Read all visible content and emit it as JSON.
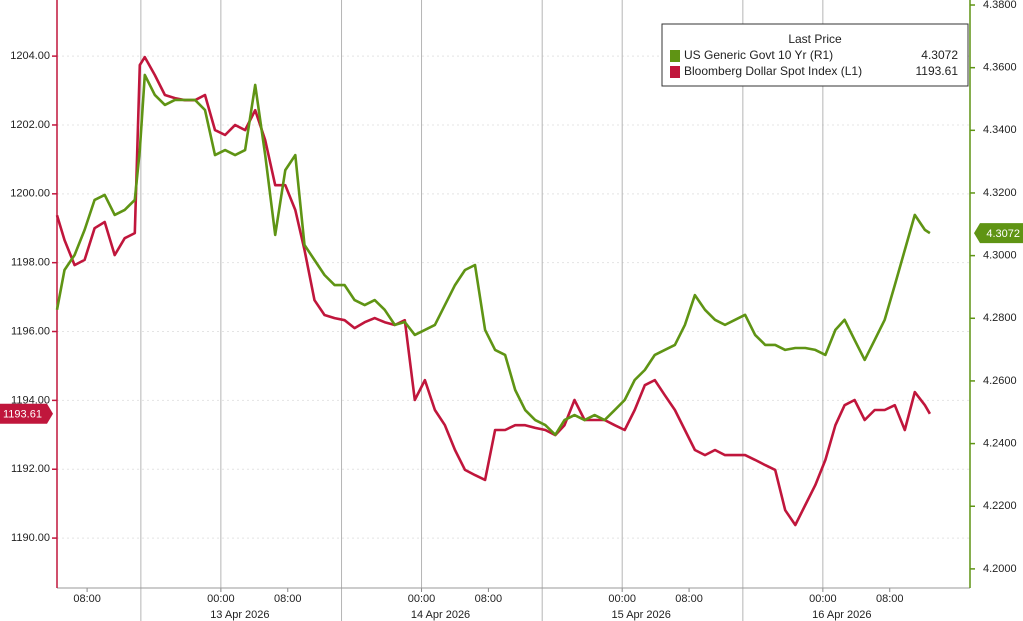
{
  "chart_data": {
    "type": "line",
    "x": [
      -19.6,
      -18.7,
      -17.5,
      -16.3,
      -15.1,
      -13.9,
      -12.7,
      -11.5,
      -10.3,
      -9.7,
      -9.1,
      -7.9,
      -6.7,
      -5.5,
      -4.3,
      -3.1,
      -1.9,
      -0.7,
      0.5,
      1.7,
      2.9,
      4.1,
      5.3,
      6.5,
      7.7,
      8.9,
      10.0,
      11.2,
      12.4,
      13.6,
      14.8,
      16.0,
      17.2,
      18.4,
      19.6,
      20.8,
      22.0,
      23.2,
      24.4,
      25.6,
      26.8,
      28.0,
      29.2,
      30.4,
      31.6,
      32.8,
      34.0,
      35.2,
      36.4,
      37.6,
      38.8,
      40.0,
      41.1,
      42.3,
      43.5,
      44.7,
      45.9,
      47.1,
      48.3,
      49.5,
      50.7,
      51.9,
      53.1,
      54.3,
      55.5,
      56.7,
      57.9,
      59.1,
      60.3,
      61.5,
      62.7,
      63.9,
      65.1,
      66.3,
      67.5,
      68.7,
      69.9,
      71.1,
      72.3,
      73.5,
      74.6,
      75.8,
      77.0,
      78.2,
      79.4,
      80.6,
      81.8,
      83.0,
      84.2,
      84.8
    ],
    "xlim": [
      -19.6,
      89.6
    ],
    "xticks": [
      {
        "value": -16,
        "label": "08:00"
      },
      {
        "value": 0,
        "label": "00:00"
      },
      {
        "value": 8,
        "label": "08:00"
      },
      {
        "value": 24,
        "label": "00:00"
      },
      {
        "value": 32,
        "label": "08:00"
      },
      {
        "value": 48,
        "label": "00:00"
      },
      {
        "value": 56,
        "label": "08:00"
      },
      {
        "value": 72,
        "label": "00:00"
      },
      {
        "value": 80,
        "label": "08:00"
      }
    ],
    "date_ticks": [
      {
        "value": 0,
        "label": "13 Apr 2026"
      },
      {
        "value": 24,
        "label": "14 Apr 2026"
      },
      {
        "value": 48,
        "label": "15 Apr 2026"
      },
      {
        "value": 72,
        "label": "16 Apr 2026"
      }
    ],
    "ylim": [
      1188.55,
      1205.63
    ],
    "yticks": [
      {
        "value": 1190,
        "label": "1190.00"
      },
      {
        "value": 1192,
        "label": "1192.00"
      },
      {
        "value": 1194,
        "label": "1194.00"
      },
      {
        "value": 1196,
        "label": "1196.00"
      },
      {
        "value": 1198,
        "label": "1198.00"
      },
      {
        "value": 1200,
        "label": "1200.00"
      },
      {
        "value": 1202,
        "label": "1202.00"
      },
      {
        "value": 1204,
        "label": "1204.00"
      }
    ],
    "y2lim": [
      4.1939,
      4.3816
    ],
    "y2ticks": [
      {
        "value": 4.2,
        "label": "4.2000"
      },
      {
        "value": 4.22,
        "label": "4.2200"
      },
      {
        "value": 4.24,
        "label": "4.2400"
      },
      {
        "value": 4.26,
        "label": "4.2600"
      },
      {
        "value": 4.28,
        "label": "4.2800"
      },
      {
        "value": 4.3,
        "label": "4.3000"
      },
      {
        "value": 4.32,
        "label": "4.3200"
      },
      {
        "value": 4.34,
        "label": "4.3400"
      },
      {
        "value": 4.36,
        "label": "4.3600"
      },
      {
        "value": 4.38,
        "label": "4.3800"
      }
    ],
    "grid": true,
    "legend": {
      "title": "Last Price",
      "position": "upper right"
    },
    "series": [
      {
        "name": "US Generic Govt 10 Yr (R1)",
        "color": "#5f9414",
        "axis": "y2",
        "last": 4.3072,
        "values": [
          4.2827,
          4.2954,
          4.3002,
          4.3082,
          4.3178,
          4.3194,
          4.313,
          4.3146,
          4.3178,
          4.3337,
          4.3577,
          4.3513,
          4.3481,
          4.3497,
          4.3497,
          4.3497,
          4.3465,
          4.3321,
          4.3337,
          4.3321,
          4.3337,
          4.3545,
          4.3321,
          4.3066,
          4.3273,
          4.3321,
          4.3034,
          4.2986,
          4.2938,
          4.2906,
          4.2906,
          4.2858,
          4.2842,
          4.2858,
          4.2827,
          4.2779,
          4.2788,
          4.2747,
          4.2763,
          4.2779,
          4.2842,
          4.2906,
          4.2954,
          4.297,
          4.2763,
          4.2699,
          4.2683,
          4.2571,
          4.2507,
          4.2475,
          4.2459,
          4.2428,
          4.2475,
          4.2491,
          4.2475,
          4.2491,
          4.2475,
          4.2507,
          4.2539,
          4.2603,
          4.2635,
          4.2683,
          4.2699,
          4.2715,
          4.2779,
          4.2874,
          4.2827,
          4.2795,
          4.2779,
          4.2795,
          4.2811,
          4.2747,
          4.2715,
          4.2715,
          4.2699,
          4.2705,
          4.2705,
          4.2699,
          4.2683,
          4.2763,
          4.2795,
          4.2731,
          4.2667,
          4.2731,
          4.2795,
          4.2906,
          4.3018,
          4.313,
          4.3082,
          4.3072
        ]
      },
      {
        "name": "Bloomberg Dollar Spot Index (L1)",
        "color": "#c0163c",
        "last": 1193.61,
        "values": [
          1199.38,
          1198.66,
          1197.93,
          1198.08,
          1199.0,
          1199.18,
          1198.22,
          1198.71,
          1198.86,
          1203.74,
          1203.97,
          1203.45,
          1202.87,
          1202.78,
          1202.72,
          1202.72,
          1202.87,
          1201.85,
          1201.71,
          1202.0,
          1201.85,
          1202.43,
          1201.56,
          1200.25,
          1200.25,
          1199.53,
          1198.37,
          1196.91,
          1196.48,
          1196.39,
          1196.33,
          1196.1,
          1196.27,
          1196.39,
          1196.27,
          1196.19,
          1196.33,
          1194.01,
          1194.59,
          1193.72,
          1193.28,
          1192.56,
          1191.98,
          1191.83,
          1191.69,
          1193.14,
          1193.14,
          1193.28,
          1193.28,
          1193.2,
          1193.14,
          1192.99,
          1193.28,
          1194.01,
          1193.43,
          1193.43,
          1193.43,
          1193.28,
          1193.14,
          1193.72,
          1194.44,
          1194.59,
          1194.15,
          1193.72,
          1193.14,
          1192.56,
          1192.41,
          1192.56,
          1192.41,
          1192.41,
          1192.41,
          1192.27,
          1192.12,
          1191.98,
          1190.81,
          1190.38,
          1190.96,
          1191.54,
          1192.27,
          1193.28,
          1193.86,
          1194.01,
          1193.43,
          1193.72,
          1193.72,
          1193.86,
          1193.14,
          1194.24,
          1193.86,
          1193.61
        ]
      }
    ]
  }
}
